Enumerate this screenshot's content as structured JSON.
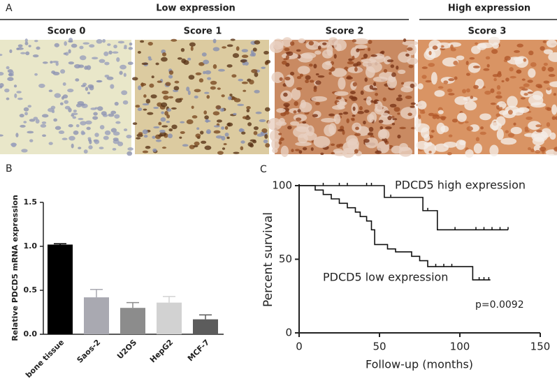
{
  "panel_a": {
    "label": "A",
    "groups": [
      "Low expression",
      "High expression"
    ],
    "scores": [
      "Score 0",
      "Score 1",
      "Score 2",
      "Score 3"
    ]
  },
  "chart_data": [
    {
      "type": "bar",
      "label": "B",
      "ylabel": "Relative PDCD5 mRNA  expression",
      "categories": [
        "bone tissue",
        "Saos-2",
        "U2OS",
        "HepG2",
        "MCF-7"
      ],
      "values": [
        1.02,
        0.42,
        0.3,
        0.36,
        0.17
      ],
      "errors": [
        0.01,
        0.09,
        0.06,
        0.07,
        0.05
      ],
      "colors": [
        "#000000",
        "#a9a9b1",
        "#8c8c8c",
        "#d2d2d2",
        "#5c5c5c"
      ],
      "ylim": [
        0,
        1.5
      ],
      "yticks": [
        {
          "value": 0,
          "label": "0.0"
        },
        0.5,
        {
          "value": 1,
          "label": "1.0"
        },
        1.5
      ]
    },
    {
      "type": "line",
      "label": "C",
      "xlabel": "Follow-up (months)",
      "ylabel": "Percent survival",
      "xlim": [
        0,
        150
      ],
      "xticks": [
        0,
        50,
        100,
        150
      ],
      "ylim": [
        0,
        100
      ],
      "yticks": [
        0,
        50,
        100
      ],
      "annotations": [
        "PDCD5 high expression",
        "PDCD5 low expression",
        "p=0.0092"
      ],
      "series": [
        {
          "color": "#111111",
          "x": [
            0,
            53,
            77,
            86,
            130
          ],
          "values": [
            100,
            92,
            83,
            70,
            70
          ],
          "censored": [
            15,
            25,
            30,
            42,
            45,
            57,
            80,
            97,
            110,
            115,
            120,
            125,
            130
          ]
        },
        {
          "color": "#111111",
          "x": [
            0,
            10,
            15,
            20,
            25,
            30,
            35,
            38,
            42,
            45,
            47,
            55,
            60,
            70,
            75,
            80,
            108,
            119
          ],
          "values": [
            100,
            97,
            94,
            91,
            88,
            85,
            82,
            79,
            76,
            70,
            60,
            57,
            55,
            52,
            49,
            45,
            36,
            36
          ],
          "censored": [
            85,
            90,
            95,
            112,
            115,
            118
          ]
        }
      ]
    }
  ]
}
